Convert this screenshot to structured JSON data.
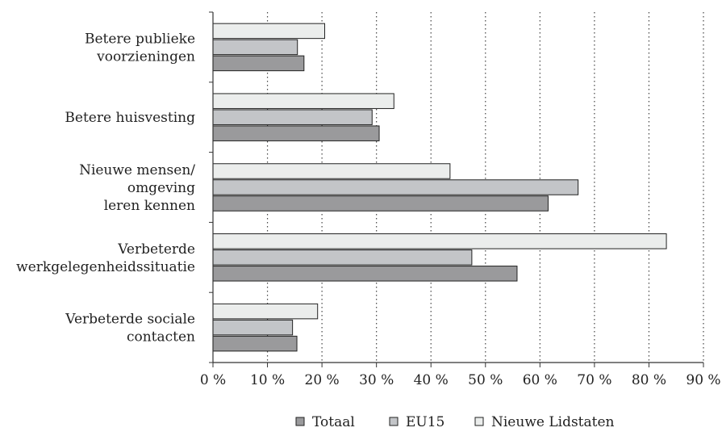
{
  "chart_data": {
    "type": "bar",
    "orientation": "horizontal",
    "categories": [
      [
        "Betere publieke",
        "voorzieningen"
      ],
      [
        "Betere huisvesting"
      ],
      [
        "Nieuwe mensen/",
        "omgeving",
        "leren kennen"
      ],
      [
        "Verbeterde",
        "werkgelegenheidssituatie"
      ],
      [
        "Verbeterde sociale",
        "contacten"
      ]
    ],
    "series": [
      {
        "name": "Nieuwe Lidstaten",
        "color": "#ebedec",
        "values": [
          20.5,
          33.2,
          43.5,
          83.2,
          19.2
        ]
      },
      {
        "name": "EU15",
        "color": "#c3c5c8",
        "values": [
          15.5,
          29.2,
          67.0,
          47.5,
          14.6
        ]
      },
      {
        "name": "Totaal",
        "color": "#9a9a9c",
        "values": [
          16.7,
          30.5,
          61.5,
          55.8,
          15.4
        ]
      }
    ],
    "legend_order": [
      "Totaal",
      "EU15",
      "Nieuwe Lidstaten"
    ],
    "xlim": [
      0,
      90
    ],
    "xticks": [
      0,
      10,
      20,
      30,
      40,
      50,
      60,
      70,
      80,
      90
    ],
    "tick_format": "{v} %",
    "grid": "vertical dotted",
    "legend_position": "bottom"
  }
}
